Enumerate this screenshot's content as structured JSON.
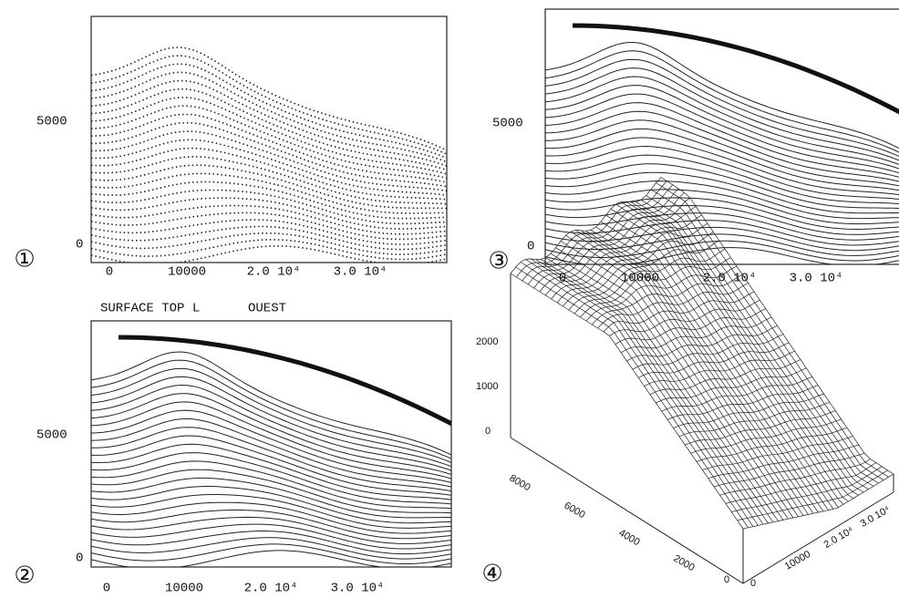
{
  "panels": [
    {
      "marker": "①",
      "x_tick_labels": [
        "0",
        "10000",
        "2.0 10⁴",
        "3.0 10⁴"
      ],
      "y_tick_labels": [
        "5000",
        "0"
      ]
    },
    {
      "marker": "②",
      "title": "SURFACE TOP L",
      "subtitle": "OUEST",
      "x_tick_labels": [
        "0",
        "10000",
        "2.0 10⁴",
        "3.0 10⁴"
      ],
      "y_tick_labels": [
        "5000",
        "0"
      ]
    },
    {
      "marker": "③",
      "x_tick_labels": [
        "0",
        "10000",
        "2.0 10⁴",
        "3.0 10⁴"
      ],
      "y_tick_labels": [
        "5000",
        "0"
      ]
    },
    {
      "marker": "④",
      "z_tick_labels": [
        "2000",
        "1000",
        "0"
      ],
      "y_tick_labels": [
        "8000",
        "6000",
        "4000",
        "2000",
        "0"
      ],
      "x_tick_labels": [
        "0",
        "10000",
        "2.0 10⁴",
        "3.0 10⁴"
      ]
    }
  ]
}
